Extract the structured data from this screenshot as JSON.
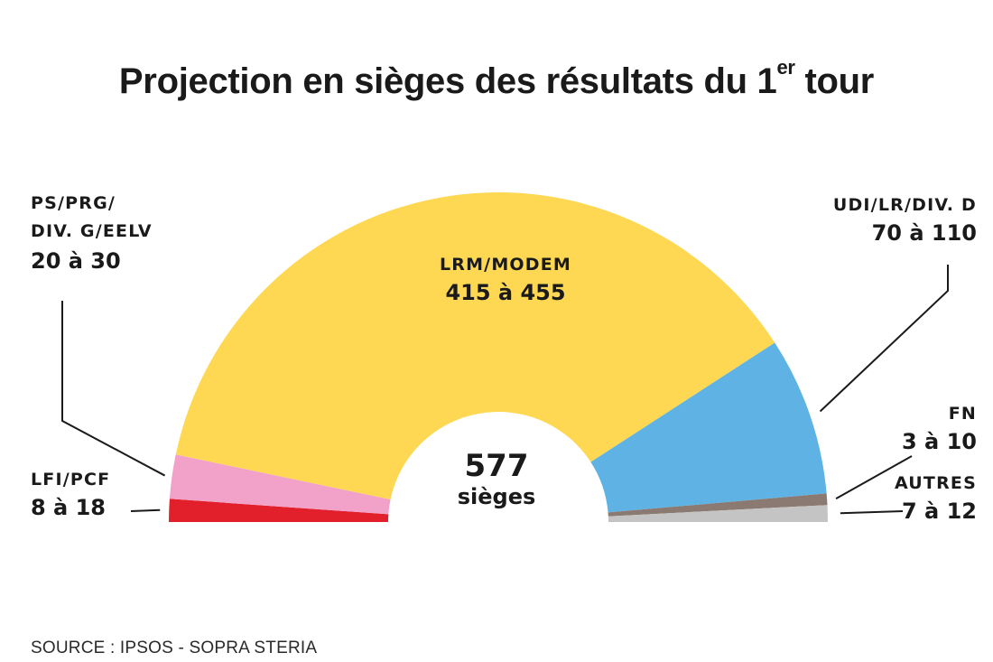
{
  "chart_data": {
    "type": "hemicycle",
    "title_main": "Projection en sièges des résultats du 1",
    "title_sup": "er",
    "title_end": " tour",
    "total": "577",
    "total_unit": "sièges",
    "segments": [
      {
        "key": "lfi",
        "name": "LFI/PCF",
        "range": "8 à 18",
        "min": 8,
        "max": 18,
        "color": "#e2202b"
      },
      {
        "key": "ps",
        "name_lines": [
          "PS/PRG/",
          "DIV. G/EELV"
        ],
        "range": "20 à 30",
        "min": 20,
        "max": 30,
        "color": "#f2a1c8"
      },
      {
        "key": "lrm",
        "name": "LRM/MODEM",
        "range": "415 à 455",
        "min": 415,
        "max": 455,
        "color": "#fed853"
      },
      {
        "key": "udi",
        "name": "UDI/LR/DIV. D",
        "range": "70 à 110",
        "min": 70,
        "max": 110,
        "color": "#5eb3e4"
      },
      {
        "key": "fn",
        "name": "FN",
        "range": "3 à 10",
        "min": 3,
        "max": 10,
        "color": "#8a7a72"
      },
      {
        "key": "autres",
        "name": "AUTRES",
        "range": "7 à 12",
        "min": 7,
        "max": 12,
        "color": "#c4c4c4"
      }
    ],
    "source": "SOURCE : IPSOS - SOPRA STERIA"
  }
}
